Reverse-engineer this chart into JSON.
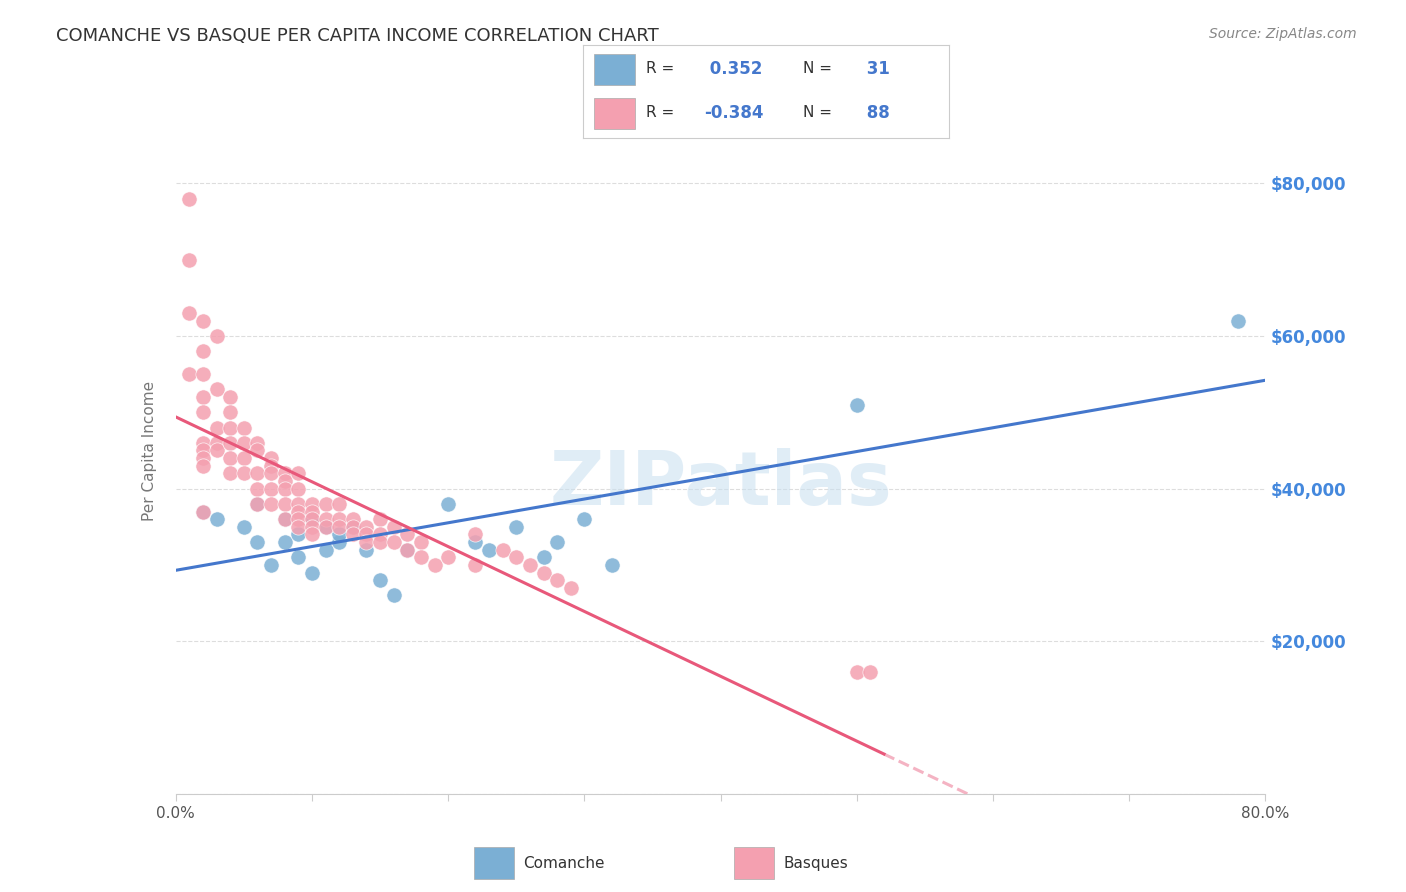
{
  "title": "COMANCHE VS BASQUE PER CAPITA INCOME CORRELATION CHART",
  "source": "Source: ZipAtlas.com",
  "ylabel": "Per Capita Income",
  "watermark": "ZIPatlas",
  "legend_comanche": "Comanche",
  "legend_basque": "Basques",
  "comanche_R": 0.352,
  "comanche_N": 31,
  "basque_R": -0.384,
  "basque_N": 88,
  "xlim": [
    0.0,
    0.8
  ],
  "ylim": [
    0,
    90000
  ],
  "yticks": [
    0,
    20000,
    40000,
    60000,
    80000
  ],
  "ytick_labels": [
    "",
    "$20,000",
    "$40,000",
    "$60,000",
    "$80,000"
  ],
  "xticks": [
    0.0,
    0.1,
    0.2,
    0.3,
    0.4,
    0.5,
    0.6,
    0.7,
    0.8
  ],
  "xtick_labels": [
    "0.0%",
    "",
    "",
    "",
    "",
    "",
    "",
    "",
    "80.0%"
  ],
  "comanche_color": "#7bafd4",
  "basque_color": "#f4a0b0",
  "line_comanche_color": "#4477cc",
  "line_basque_color": "#e8587a",
  "title_color": "#333333",
  "axis_label_color": "#777777",
  "tick_color": "#555555",
  "right_tick_color": "#4488dd",
  "grid_color": "#dddddd",
  "background_color": "#ffffff",
  "comanche_x": [
    0.02,
    0.03,
    0.05,
    0.06,
    0.06,
    0.07,
    0.08,
    0.08,
    0.09,
    0.09,
    0.1,
    0.1,
    0.11,
    0.11,
    0.12,
    0.12,
    0.13,
    0.14,
    0.15,
    0.16,
    0.17,
    0.2,
    0.22,
    0.23,
    0.25,
    0.27,
    0.28,
    0.3,
    0.32,
    0.5,
    0.78
  ],
  "comanche_y": [
    37000,
    36000,
    35000,
    38000,
    33000,
    30000,
    36000,
    33000,
    31000,
    34000,
    36000,
    29000,
    35000,
    32000,
    33000,
    34000,
    35000,
    32000,
    28000,
    26000,
    32000,
    38000,
    33000,
    32000,
    35000,
    31000,
    33000,
    36000,
    30000,
    51000,
    62000
  ],
  "basque_x": [
    0.01,
    0.01,
    0.01,
    0.01,
    0.02,
    0.02,
    0.02,
    0.02,
    0.02,
    0.02,
    0.02,
    0.02,
    0.02,
    0.02,
    0.03,
    0.03,
    0.03,
    0.03,
    0.03,
    0.04,
    0.04,
    0.04,
    0.04,
    0.04,
    0.04,
    0.05,
    0.05,
    0.05,
    0.05,
    0.06,
    0.06,
    0.06,
    0.06,
    0.06,
    0.07,
    0.07,
    0.07,
    0.07,
    0.07,
    0.08,
    0.08,
    0.08,
    0.08,
    0.08,
    0.09,
    0.09,
    0.09,
    0.09,
    0.09,
    0.09,
    0.1,
    0.1,
    0.1,
    0.1,
    0.1,
    0.11,
    0.11,
    0.11,
    0.12,
    0.12,
    0.12,
    0.13,
    0.13,
    0.13,
    0.14,
    0.14,
    0.14,
    0.15,
    0.15,
    0.15,
    0.16,
    0.16,
    0.17,
    0.17,
    0.18,
    0.18,
    0.19,
    0.2,
    0.22,
    0.22,
    0.24,
    0.25,
    0.26,
    0.27,
    0.28,
    0.29,
    0.5,
    0.51
  ],
  "basque_y": [
    78000,
    70000,
    63000,
    55000,
    62000,
    58000,
    55000,
    52000,
    50000,
    46000,
    45000,
    44000,
    43000,
    37000,
    60000,
    53000,
    48000,
    46000,
    45000,
    52000,
    50000,
    48000,
    46000,
    44000,
    42000,
    48000,
    46000,
    44000,
    42000,
    46000,
    45000,
    42000,
    40000,
    38000,
    44000,
    43000,
    42000,
    40000,
    38000,
    42000,
    41000,
    40000,
    38000,
    36000,
    42000,
    40000,
    38000,
    37000,
    36000,
    35000,
    38000,
    37000,
    36000,
    35000,
    34000,
    38000,
    36000,
    35000,
    38000,
    36000,
    35000,
    36000,
    35000,
    34000,
    35000,
    34000,
    33000,
    36000,
    34000,
    33000,
    35000,
    33000,
    34000,
    32000,
    33000,
    31000,
    30000,
    31000,
    34000,
    30000,
    32000,
    31000,
    30000,
    29000,
    28000,
    27000,
    16000,
    16000
  ]
}
